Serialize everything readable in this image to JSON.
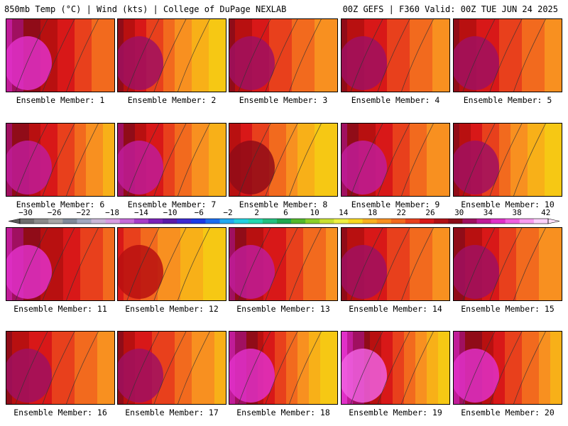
{
  "header": {
    "left": "850mb Temp (°C) | Wind (kts) | College of DuPage NEXLAB",
    "right": "00Z GEFS | F360 Valid: 00Z TUE JUN 24 2025"
  },
  "member_label_prefix": "Ensemble Member: ",
  "members": [
    {
      "num": "1",
      "west": 34,
      "east": 22
    },
    {
      "num": "2",
      "west": 30,
      "east": 16
    },
    {
      "num": "3",
      "west": 30,
      "east": 20
    },
    {
      "num": "4",
      "west": 30,
      "east": 21
    },
    {
      "num": "5",
      "west": 30,
      "east": 21
    },
    {
      "num": "6",
      "west": 33,
      "east": 19
    },
    {
      "num": "7",
      "west": 32,
      "east": 18
    },
    {
      "num": "8",
      "west": 29,
      "east": 16
    },
    {
      "num": "9",
      "west": 32,
      "east": 20
    },
    {
      "num": "10",
      "west": 30,
      "east": 16
    },
    {
      "num": "11",
      "west": 34,
      "east": 23
    },
    {
      "num": "12",
      "west": 26,
      "east": 16
    },
    {
      "num": "13",
      "west": 32,
      "east": 21
    },
    {
      "num": "14",
      "west": 30,
      "east": 21
    },
    {
      "num": "15",
      "west": 31,
      "east": 20
    },
    {
      "num": "16",
      "west": 30,
      "east": 21
    },
    {
      "num": "17",
      "west": 30,
      "east": 19
    },
    {
      "num": "18",
      "west": 35,
      "east": 16
    },
    {
      "num": "19",
      "west": 36,
      "east": 16
    },
    {
      "num": "20",
      "west": 34,
      "east": 19
    }
  ],
  "colorbar": {
    "ticks": [
      "−30",
      "−26",
      "−22",
      "−18",
      "−14",
      "−10",
      "−6",
      "−2",
      "2",
      "6",
      "10",
      "14",
      "18",
      "22",
      "26",
      "30",
      "34",
      "38",
      "42"
    ],
    "colors": [
      "#6e6e6e",
      "#8a8a8a",
      "#a6a6a6",
      "#7f8a9a",
      "#a0a8c0",
      "#c9b6d6",
      "#d79be0",
      "#c46ad8",
      "#a63cc8",
      "#7a22b8",
      "#5a1aa8",
      "#3c2ad0",
      "#1a3ae6",
      "#1a6cf0",
      "#22a8f0",
      "#22d0e0",
      "#22d8b0",
      "#22c080",
      "#20a850",
      "#52b82c",
      "#8ad028",
      "#c8e030",
      "#eef040",
      "#f8d820",
      "#f8b020",
      "#f89020",
      "#f26a1e",
      "#e8401c",
      "#d81818",
      "#b01014",
      "#8a0c18",
      "#a01060",
      "#c01c98",
      "#e030c8",
      "#f060e0",
      "#f89cf0",
      "#fcd0fc"
    ]
  }
}
